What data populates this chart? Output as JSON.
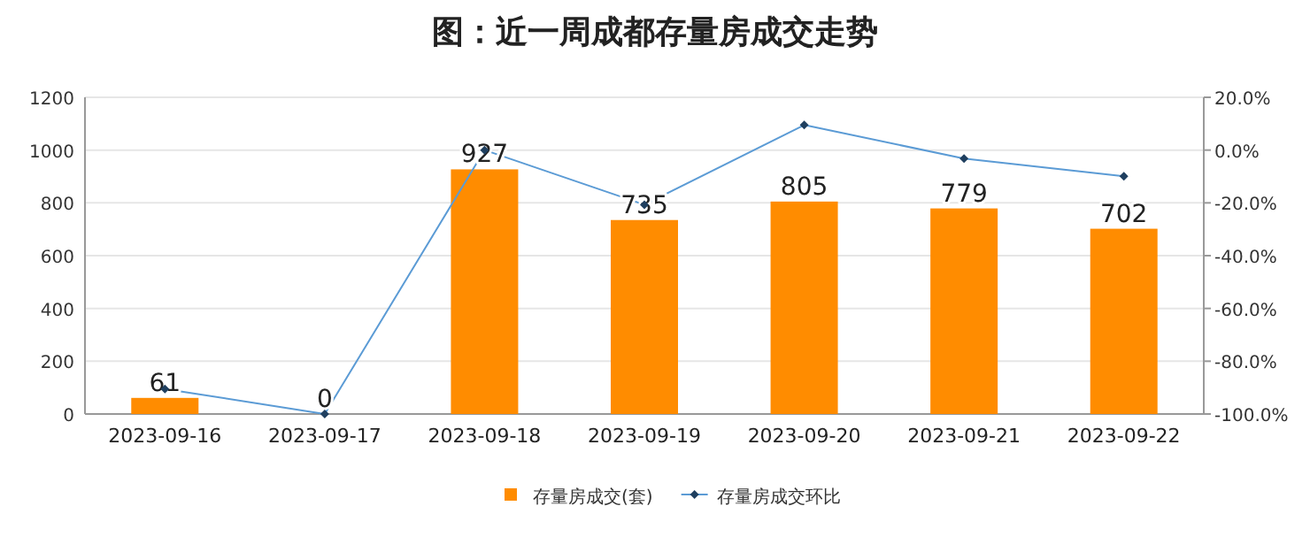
{
  "chart_data": {
    "type": "bar",
    "title": "图：近一周成都存量房成交走势",
    "categories": [
      "2023-09-16",
      "2023-09-17",
      "2023-09-18",
      "2023-09-19",
      "2023-09-20",
      "2023-09-21",
      "2023-09-22"
    ],
    "series": [
      {
        "name": "存量房成交(套)",
        "color": "#ff8c00",
        "values": [
          61,
          0,
          927,
          735,
          805,
          779,
          702
        ],
        "value_labels": [
          "61",
          "0",
          "927",
          "735",
          "805",
          "779",
          "702"
        ]
      },
      {
        "name": "存量房成交环比",
        "type": "line",
        "axis": "y2",
        "color": "#5b9bd5",
        "marker": "diamond",
        "values": [
          -90.5,
          -100,
          0,
          -20.7,
          9.5,
          -3.2,
          -9.9
        ]
      }
    ],
    "ylim": [
      0,
      1200
    ],
    "yticks": [
      0,
      200,
      400,
      600,
      800,
      1000,
      1200
    ],
    "y2lim": [
      -100,
      20
    ],
    "y2ticks": [
      {
        "value": -100,
        "label": "-100.0%"
      },
      {
        "value": -80,
        "label": "-80.0%"
      },
      {
        "value": -60,
        "label": "-60.0%"
      },
      {
        "value": -40,
        "label": "-40.0%"
      },
      {
        "value": -20,
        "label": "-20.0%"
      },
      {
        "value": 0,
        "label": "0.0%"
      },
      {
        "value": 20,
        "label": "20.0%"
      }
    ],
    "grid": "y",
    "legend": "bottom"
  }
}
